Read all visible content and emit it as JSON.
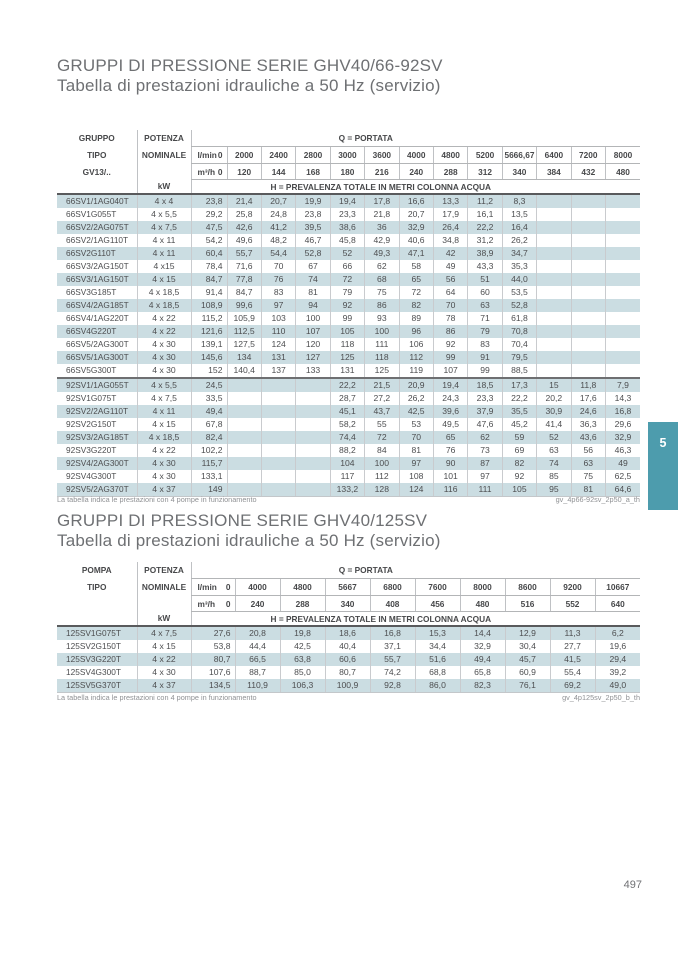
{
  "page": {
    "number": "497",
    "section_tab": "5",
    "accent_color": "#4d9cad",
    "shaded_row_color": "#cbdde2"
  },
  "tables": [
    {
      "title_line1": "GRUPPI DI PRESSIONE SERIE GHV40/66-92SV",
      "title_line2": "Tabella di prestazioni idrauliche a 50 Hz (servizio)",
      "header": {
        "col1_lines": [
          "GRUPPO",
          "TIPO",
          "GV13/.."
        ],
        "col2_lines": [
          "POTENZA",
          "NOMINALE"
        ],
        "kw_label": "kW",
        "q_label": "Q = PORTATA",
        "lmin_label": "l/min",
        "m3h_label": "m³/h",
        "lmin_values": [
          "0",
          "2000",
          "2400",
          "2800",
          "3000",
          "3600",
          "4000",
          "4800",
          "5200",
          "5666,67",
          "6400",
          "7200",
          "8000"
        ],
        "m3h_values": [
          "0",
          "120",
          "144",
          "168",
          "180",
          "216",
          "240",
          "288",
          "312",
          "340",
          "384",
          "432",
          "480"
        ],
        "h_label": "H = PREVALENZA  TOTALE  IN METRI  COLONNA  ACQUA"
      },
      "divider_before_index": 14,
      "rows": [
        {
          "type": "66SV1/1AG040T",
          "kw": "4 x 4",
          "values": [
            "23,8",
            "21,4",
            "20,7",
            "19,9",
            "19,4",
            "17,8",
            "16,6",
            "13,3",
            "11,2",
            "8,3",
            "",
            "",
            ""
          ]
        },
        {
          "type": "66SV1G055T",
          "kw": "4 x 5,5",
          "values": [
            "29,2",
            "25,8",
            "24,8",
            "23,8",
            "23,3",
            "21,8",
            "20,7",
            "17,9",
            "16,1",
            "13,5",
            "",
            "",
            ""
          ]
        },
        {
          "type": "66SV2/2AG075T",
          "kw": "4 x 7,5",
          "values": [
            "47,5",
            "42,6",
            "41,2",
            "39,5",
            "38,6",
            "36",
            "32,9",
            "26,4",
            "22,2",
            "16,4",
            "",
            "",
            ""
          ]
        },
        {
          "type": "66SV2/1AG110T",
          "kw": "4 x 11",
          "values": [
            "54,2",
            "49,6",
            "48,2",
            "46,7",
            "45,8",
            "42,9",
            "40,6",
            "34,8",
            "31,2",
            "26,2",
            "",
            "",
            ""
          ]
        },
        {
          "type": "66SV2G110T",
          "kw": "4 x 11",
          "values": [
            "60,4",
            "55,7",
            "54,4",
            "52,8",
            "52",
            "49,3",
            "47,1",
            "42",
            "38,9",
            "34,7",
            "",
            "",
            ""
          ]
        },
        {
          "type": "66SV3/2AG150T",
          "kw": "4 x15",
          "values": [
            "78,4",
            "71,6",
            "70",
            "67",
            "66",
            "62",
            "58",
            "49",
            "43,3",
            "35,3",
            "",
            "",
            ""
          ]
        },
        {
          "type": "66SV3/1AG150T",
          "kw": "4 x 15",
          "values": [
            "84,7",
            "77,8",
            "76",
            "74",
            "72",
            "68",
            "65",
            "56",
            "51",
            "44,0",
            "",
            "",
            ""
          ]
        },
        {
          "type": "66SV3G185T",
          "kw": "4 x 18,5",
          "values": [
            "91,4",
            "84,7",
            "83",
            "81",
            "79",
            "75",
            "72",
            "64",
            "60",
            "53,5",
            "",
            "",
            ""
          ]
        },
        {
          "type": "66SV4/2AG185T",
          "kw": "4 x 18,5",
          "values": [
            "108,9",
            "99,6",
            "97",
            "94",
            "92",
            "86",
            "82",
            "70",
            "63",
            "52,8",
            "",
            "",
            ""
          ]
        },
        {
          "type": "66SV4/1AG220T",
          "kw": "4 x 22",
          "values": [
            "115,2",
            "105,9",
            "103",
            "100",
            "99",
            "93",
            "89",
            "78",
            "71",
            "61,8",
            "",
            "",
            ""
          ]
        },
        {
          "type": "66SV4G220T",
          "kw": "4 x 22",
          "values": [
            "121,6",
            "112,5",
            "110",
            "107",
            "105",
            "100",
            "96",
            "86",
            "79",
            "70,8",
            "",
            "",
            ""
          ]
        },
        {
          "type": "66SV5/2AG300T",
          "kw": "4 x 30",
          "values": [
            "139,1",
            "127,5",
            "124",
            "120",
            "118",
            "111",
            "106",
            "92",
            "83",
            "70,4",
            "",
            "",
            ""
          ]
        },
        {
          "type": "66SV5/1AG300T",
          "kw": "4 x 30",
          "values": [
            "145,6",
            "134",
            "131",
            "127",
            "125",
            "118",
            "112",
            "99",
            "91",
            "79,5",
            "",
            "",
            ""
          ]
        },
        {
          "type": "66SV5G300T",
          "kw": "4 x 30",
          "values": [
            "152",
            "140,4",
            "137",
            "133",
            "131",
            "125",
            "119",
            "107",
            "99",
            "88,5",
            "",
            "",
            ""
          ]
        },
        {
          "type": "92SV1/1AG055T",
          "kw": "4 x 5,5",
          "values": [
            "24,5",
            "",
            "",
            "",
            "22,2",
            "21,5",
            "20,9",
            "19,4",
            "18,5",
            "17,3",
            "15",
            "11,8",
            "7,9"
          ]
        },
        {
          "type": "92SV1G075T",
          "kw": "4 x 7,5",
          "values": [
            "33,5",
            "",
            "",
            "",
            "28,7",
            "27,2",
            "26,2",
            "24,3",
            "23,3",
            "22,2",
            "20,2",
            "17,6",
            "14,3"
          ]
        },
        {
          "type": "92SV2/2AG110T",
          "kw": "4 x 11",
          "values": [
            "49,4",
            "",
            "",
            "",
            "45,1",
            "43,7",
            "42,5",
            "39,6",
            "37,9",
            "35,5",
            "30,9",
            "24,6",
            "16,8"
          ]
        },
        {
          "type": "92SV2G150T",
          "kw": "4 x 15",
          "values": [
            "67,8",
            "",
            "",
            "",
            "58,2",
            "55",
            "53",
            "49,5",
            "47,6",
            "45,2",
            "41,4",
            "36,3",
            "29,6"
          ]
        },
        {
          "type": "92SV3/2AG185T",
          "kw": "4 x 18,5",
          "values": [
            "82,4",
            "",
            "",
            "",
            "74,4",
            "72",
            "70",
            "65",
            "62",
            "59",
            "52",
            "43,6",
            "32,9"
          ]
        },
        {
          "type": "92SV3G220T",
          "kw": "4 x 22",
          "values": [
            "102,2",
            "",
            "",
            "",
            "88,2",
            "84",
            "81",
            "76",
            "73",
            "69",
            "63",
            "56",
            "46,3"
          ]
        },
        {
          "type": "92SV4/2AG300T",
          "kw": "4 x 30",
          "values": [
            "115,7",
            "",
            "",
            "",
            "104",
            "100",
            "97",
            "90",
            "87",
            "82",
            "74",
            "63",
            "49"
          ]
        },
        {
          "type": "92SV4G300T",
          "kw": "4 x 30",
          "values": [
            "133,1",
            "",
            "",
            "",
            "117",
            "112",
            "108",
            "101",
            "97",
            "92",
            "85",
            "75",
            "62,5"
          ]
        },
        {
          "type": "92SV5/2AG370T",
          "kw": "4 x 37",
          "values": [
            "149",
            "",
            "",
            "",
            "133,2",
            "128",
            "124",
            "116",
            "111",
            "105",
            "95",
            "81",
            "64,6"
          ]
        }
      ],
      "footnote": "La tabella indica le prestazioni  con 4 pompe in funzionamento",
      "code": "gv_4p66-92sv_2p50_a_th"
    },
    {
      "title_line1": "GRUPPI DI PRESSIONE SERIE GHV40/125SV",
      "title_line2": "Tabella di prestazioni idrauliche a 50 Hz (servizio)",
      "header": {
        "col1_lines": [
          "POMPA",
          "TIPO",
          ""
        ],
        "col2_lines": [
          "POTENZA",
          "NOMINALE"
        ],
        "kw_label": "kW",
        "q_label": "Q = PORTATA",
        "lmin_label": "l/min",
        "m3h_label": "m³/h",
        "lmin_values": [
          "0",
          "4000",
          "4800",
          "5667",
          "6800",
          "7600",
          "8000",
          "8600",
          "9200",
          "10667"
        ],
        "m3h_values": [
          "0",
          "240",
          "288",
          "340",
          "408",
          "456",
          "480",
          "516",
          "552",
          "640"
        ],
        "h_label": "H = PREVALENZA  TOTALE  IN METRI  COLONNA  ACQUA"
      },
      "divider_before_index": -1,
      "rows": [
        {
          "type": "125SV1G075T",
          "kw": "4 x 7,5",
          "values": [
            "27,6",
            "20,8",
            "19,8",
            "18,6",
            "16,8",
            "15,3",
            "14,4",
            "12,9",
            "11,3",
            "6,2"
          ]
        },
        {
          "type": "125SV2G150T",
          "kw": "4 x 15",
          "values": [
            "53,8",
            "44,4",
            "42,5",
            "40,4",
            "37,1",
            "34,4",
            "32,9",
            "30,4",
            "27,7",
            "19,6"
          ]
        },
        {
          "type": "125SV3G220T",
          "kw": "4 x 22",
          "values": [
            "80,7",
            "66,5",
            "63,8",
            "60,6",
            "55,7",
            "51,6",
            "49,4",
            "45,7",
            "41,5",
            "29,4"
          ]
        },
        {
          "type": "125SV4G300T",
          "kw": "4 x 30",
          "values": [
            "107,6",
            "88,7",
            "85,0",
            "80,7",
            "74,2",
            "68,8",
            "65,8",
            "60,9",
            "55,4",
            "39,2"
          ]
        },
        {
          "type": "125SV5G370T",
          "kw": "4 x 37",
          "values": [
            "134,5",
            "110,9",
            "106,3",
            "100,9",
            "92,8",
            "86,0",
            "82,3",
            "76,1",
            "69,2",
            "49,0"
          ]
        }
      ],
      "footnote": "La tabella indica  le prestazioni  con 4 pompe in funzionamento",
      "code": "gv_4p125sv_2p50_b_th"
    }
  ]
}
